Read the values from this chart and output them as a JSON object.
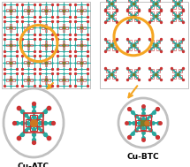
{
  "label_left": "Cu-ATC",
  "label_right": "Cu-BTC",
  "label_fontsize": 6.5,
  "label_fontweight": "bold",
  "bg_color": "#ffffff",
  "circle_color_zoom": "#f5a623",
  "circle_linewidth": 2.2,
  "ellipse_color": "#c0c0c0",
  "ellipse_linewidth": 2.0,
  "arrow_color": "#f5a623",
  "teal": "#29a89e",
  "red": "#cc3333",
  "olive": "#7a7a2a",
  "orange_cu": "#cc7722",
  "figsize": [
    2.15,
    1.89
  ],
  "dpi": 100
}
